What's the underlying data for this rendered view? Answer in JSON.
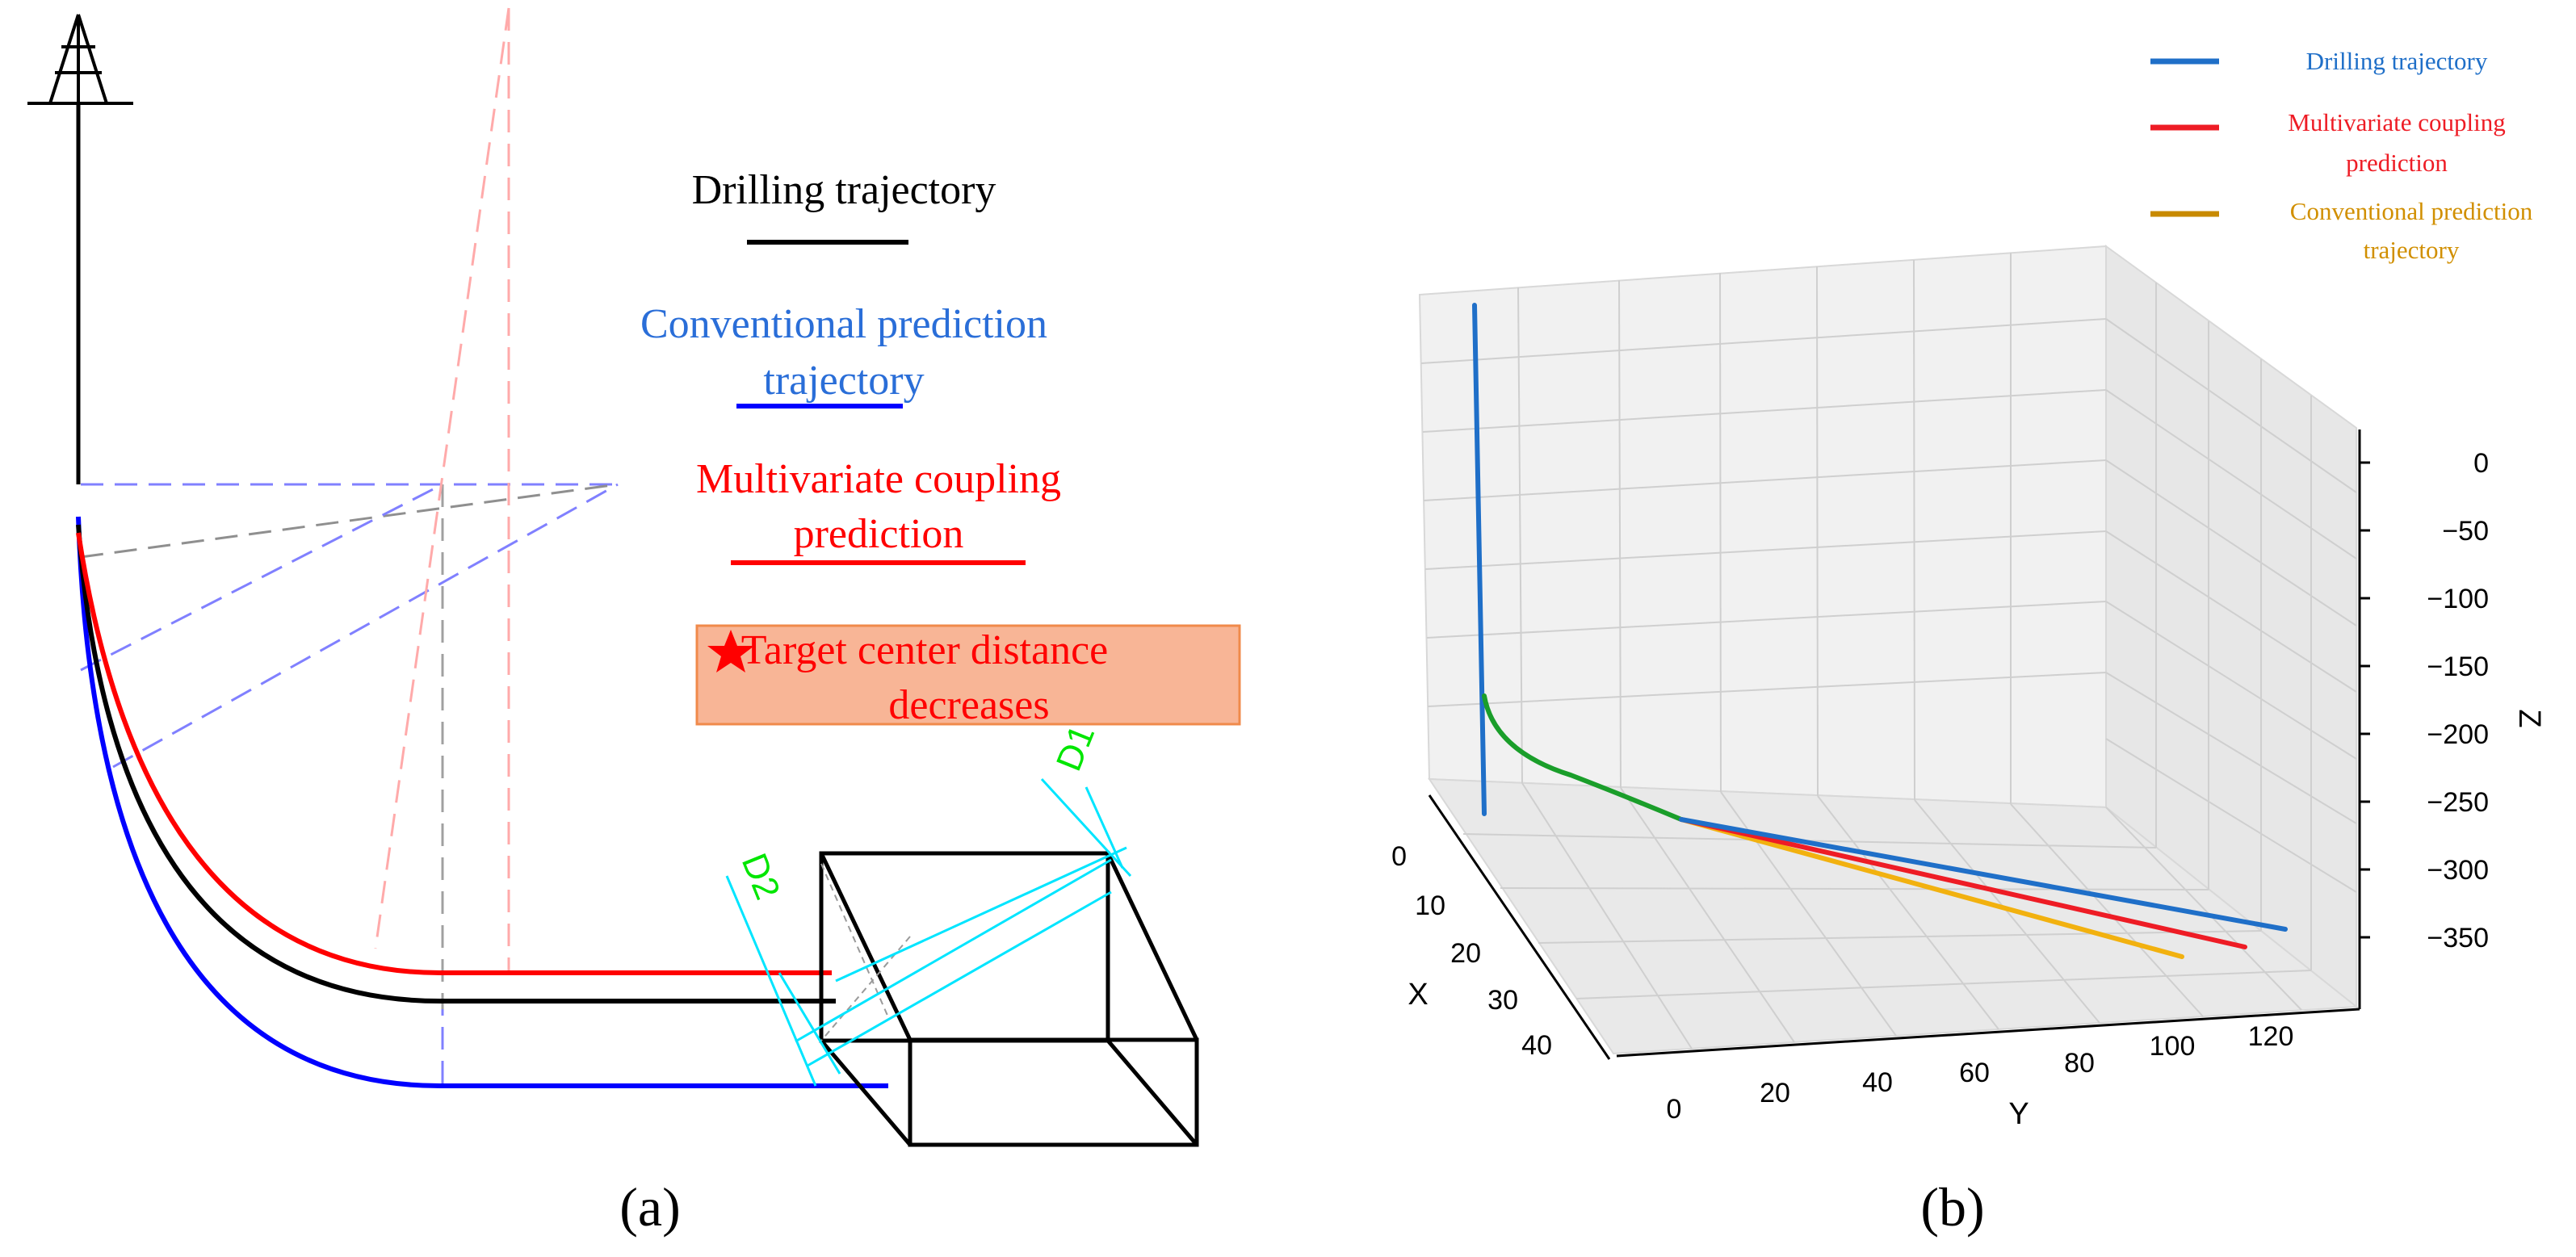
{
  "panel_a": {
    "caption": "(a)",
    "legend": {
      "drilling": "Drilling trajectory",
      "conventional_line1": "Conventional prediction",
      "conventional_line2": "trajectory",
      "multivariate_line1": "Multivariate coupling",
      "multivariate_line2": "prediction"
    },
    "callout": {
      "line1": "Target center distance",
      "line2": "decreases"
    },
    "dimension_labels": [
      "D1",
      "D2"
    ],
    "colors": {
      "drilling": "#000000",
      "conventional": "#0000ff",
      "multivariate": "#ff0000",
      "dimension": "#00e5ff",
      "dim_text": "#00e600",
      "callout_fill": "#f8b596",
      "callout_border": "#f08a4b"
    }
  },
  "panel_b": {
    "caption": "(b)",
    "legend": {
      "drilling": "Drilling trajectory",
      "multivariate_line1": "Multivariate coupling",
      "multivariate_line2": "prediction",
      "conventional_line1": "Conventional prediction",
      "conventional_line2": "trajectory"
    },
    "axes": {
      "x_label": "X",
      "y_label": "Y",
      "z_label": "Z",
      "x_ticks": [
        "0",
        "10",
        "20",
        "30",
        "40"
      ],
      "y_ticks": [
        "0",
        "20",
        "40",
        "60",
        "80",
        "100",
        "120"
      ],
      "z_ticks": [
        "0",
        "−50",
        "−100",
        "−150",
        "−200",
        "−250",
        "−300",
        "−350"
      ]
    },
    "colors": {
      "drilling": "#1f6fc8",
      "multivariate": "#ee1c25",
      "conventional": "#f2b10f",
      "legend_conventional": "#d18f00",
      "build_section": "#1a9e2a"
    }
  }
}
